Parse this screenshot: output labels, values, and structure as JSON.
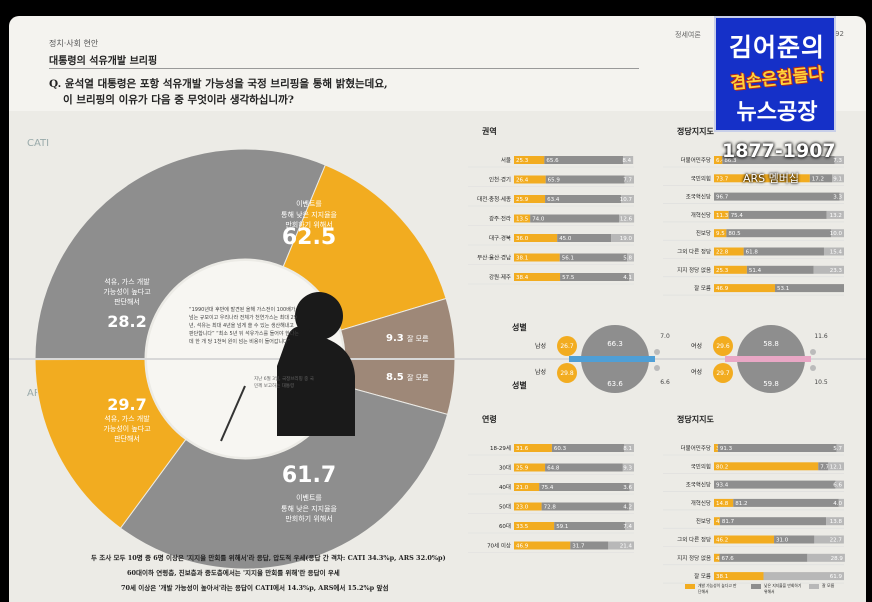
{
  "header": {
    "section": "정치·사회 현안",
    "title": "대통령의 석유개발 브리핑",
    "question_line1": "Q. 윤석열 대통령은 포항 석유개발 가능성을 국정 브리핑을 통해 밝혔는데요,",
    "question_line2": "이 브리핑의 이유가 다음 중 무엇이라 생각하십니까?",
    "top_right_fragment": "정세여론",
    "top_right_page": "92"
  },
  "badge": {
    "line1": "김어준의",
    "line2": "겸손은힘들다",
    "line3": "뉴스공장",
    "years": "1877-1907",
    "member": "ARS 멤버십"
  },
  "labels": {
    "cati": "CATI",
    "ars": "ARS"
  },
  "quote": {
    "text": "“1990년대 후반에 발견된 올해 가스전이 100배가 넘는 규모이고 우리나라 전체가 천연가스는 최대 29년, 석유는 최대 4년을 넘게 쓸 수 있는 생산해내고 판단합니다” “최소 5년 뒤 석유가스를 들어야 한다는데 한 개 당 1천억 원이 넘는 비용이 들어갑니다”",
    "caption": "지난 6월 3일, 국정브리핑 중 국민께 보고하는 대통령"
  },
  "summary": {
    "line1": "두 조사 모두 10명 중 6명 이상은 '지지율 만회를 위해서'라 응답, 압도적 우세(응답 간 격차: CATI 34.3%p, ARS 32.0%p)",
    "line2": "60대이하 연령층, 진보층과 중도층에서는 '지지율 만회를 위해'란 응답이 우세",
    "line3": "70세 이상은 '개발 가능성이 높아서'라는 응답이 CATI에서 14.3%p, ARS에서 15.2%p 앞섬"
  },
  "legend": {
    "a": "개발 가능성이 높다고 판단해서",
    "b": "낮은 지지율을 만회하기 위해서",
    "c": "잘 모름"
  },
  "colors": {
    "orange": "#f2ac20",
    "gray": "#8e8e8e",
    "brown": "#9e8878",
    "blue": "#4f9fd6",
    "pink": "#e9a7c5"
  },
  "chart_data": [
    {
      "type": "pie",
      "name": "CATI",
      "slices": [
        {
          "label": "이벤트를 통해 낮은 지지율을 만회하기 위해서",
          "value": 62.5
        },
        {
          "label": "석유, 가스 개발 가능성이 높다고 판단해서",
          "value": 28.2
        },
        {
          "label": "잘 모름",
          "value": 9.3
        }
      ]
    },
    {
      "type": "pie",
      "name": "ARS",
      "slices": [
        {
          "label": "이벤트를 통해 낮은 지지율을 만회하기 위해서",
          "value": 61.7
        },
        {
          "label": "석유, 가스 개발 가능성이 높다고 판단해서",
          "value": 29.7
        },
        {
          "label": "잘 모름",
          "value": 8.5
        }
      ]
    },
    {
      "type": "bar",
      "title": "권역",
      "categories": [
        "서울",
        "인천·경기",
        "대전·충청·세종",
        "광주·전라",
        "대구·경북",
        "부산·울산·경남",
        "강원·제주"
      ],
      "series": [
        {
          "name": "개발 가능성이 높다고 판단해서",
          "values": [
            25.3,
            26.4,
            25.9,
            13.5,
            36.0,
            38.1,
            38.4
          ]
        },
        {
          "name": "낮은 지지율을 만회하기 위해서",
          "values": [
            65.6,
            65.9,
            63.4,
            74.0,
            45.0,
            56.1,
            57.5
          ]
        },
        {
          "name": "잘 모름",
          "values": [
            8.4,
            7.7,
            10.7,
            12.6,
            19.0,
            5.8,
            4.1
          ]
        }
      ]
    },
    {
      "type": "bar",
      "title": "정당지지도",
      "categories": [
        "더불어민주당",
        "국민의힘",
        "조국혁신당",
        "개혁신당",
        "진보당",
        "그외 다른 정당",
        "지지 정당 없음",
        "잘 모름"
      ],
      "series": [
        {
          "name": "개발 가능성이 높다고 판단해서",
          "values": [
            6.4,
            73.7,
            0.0,
            11.3,
            9.5,
            22.8,
            25.3,
            46.9
          ]
        },
        {
          "name": "낮은 지지율을 만회하기 위해서",
          "values": [
            86.3,
            17.2,
            96.7,
            75.4,
            80.5,
            61.8,
            51.4,
            53.1
          ]
        },
        {
          "name": "잘 모름",
          "values": [
            7.3,
            9.1,
            3.3,
            13.2,
            10.0,
            15.4,
            23.3,
            0.0
          ]
        }
      ]
    },
    {
      "type": "bar",
      "title": "성별",
      "categories": [
        "남성",
        "여성"
      ],
      "series": [
        {
          "name": "CATI 개발 가능성",
          "values": [
            26.7,
            29.6
          ]
        },
        {
          "name": "CATI 지지율 만회",
          "values": [
            66.3,
            58.8
          ]
        },
        {
          "name": "CATI 잘 모름",
          "values": [
            7.0,
            11.6
          ]
        },
        {
          "name": "ARS 개발 가능성",
          "values": [
            29.8,
            29.7
          ]
        },
        {
          "name": "ARS 지지율 만회",
          "values": [
            63.6,
            59.8
          ]
        },
        {
          "name": "ARS 잘 모름",
          "values": [
            6.6,
            10.5
          ]
        }
      ]
    },
    {
      "type": "bar",
      "title": "연령",
      "categories": [
        "18-29세",
        "30대",
        "40대",
        "50대",
        "60대",
        "70세 이상"
      ],
      "series": [
        {
          "name": "개발 가능성이 높다고 판단해서",
          "values": [
            31.6,
            25.9,
            21.0,
            23.0,
            33.5,
            46.9
          ]
        },
        {
          "name": "낮은 지지율을 만회하기 위해서",
          "values": [
            60.3,
            64.8,
            75.4,
            72.8,
            59.1,
            31.7
          ]
        },
        {
          "name": "잘 모름",
          "values": [
            8.1,
            9.3,
            3.6,
            4.2,
            7.4,
            21.4
          ]
        }
      ]
    },
    {
      "type": "bar",
      "title": "정당지지도",
      "categories": [
        "더불어민주당",
        "국민의힘",
        "조국혁신당",
        "개혁신당",
        "진보당",
        "그외 다른 정당",
        "지지 정당 없음",
        "잘 모름"
      ],
      "series": [
        {
          "name": "개발 가능성이 높다고 판단해서",
          "values": [
            3.0,
            80.2,
            0.0,
            14.8,
            4.5,
            46.2,
            4.2,
            38.1
          ]
        },
        {
          "name": "낮은 지지율을 만회하기 위해서",
          "values": [
            91.3,
            7.7,
            93.4,
            81.2,
            81.7,
            31.0,
            67.6,
            0.0
          ]
        },
        {
          "name": "잘 모름",
          "values": [
            5.7,
            12.1,
            6.6,
            4.0,
            13.8,
            22.7,
            28.9,
            61.9
          ]
        }
      ]
    }
  ]
}
